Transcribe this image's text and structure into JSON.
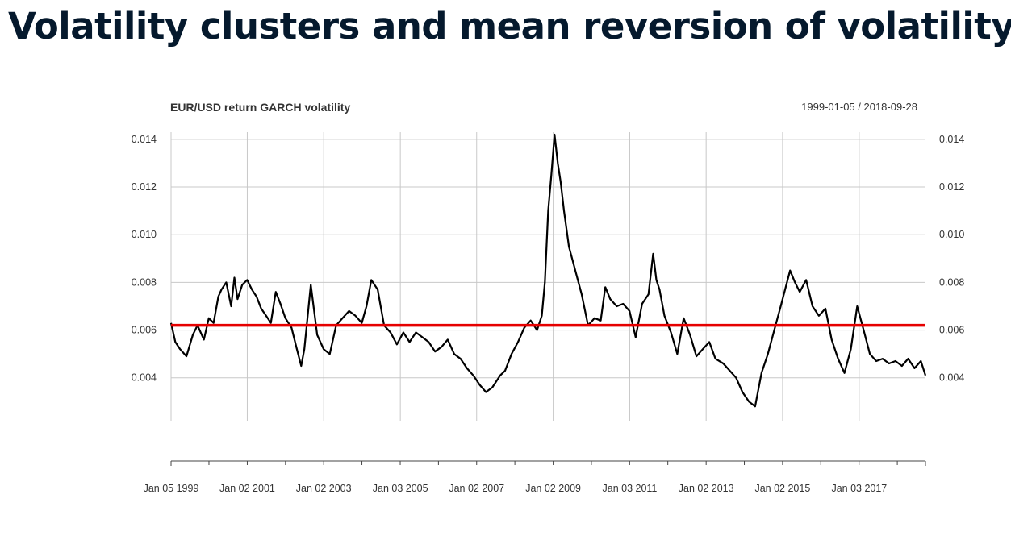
{
  "slide": {
    "title": "Volatility clusters and mean reversion of volatility"
  },
  "chart_data": {
    "type": "line",
    "title": "EUR/USD return GARCH volatility",
    "date_range": "1999-01-05 / 2018-09-28",
    "xlabel": "",
    "ylabel": "",
    "grid": true,
    "line_color": "#000000",
    "mean_line_color": "#e60000",
    "x_range": [
      "1999-01-05",
      "2018-09-28"
    ],
    "ylim": [
      0.0022,
      0.0143
    ],
    "y_ticks": [
      "0.004",
      "0.006",
      "0.008",
      "0.010",
      "0.012",
      "0.014"
    ],
    "x_ticks": [
      "Jan 05 1999",
      "Jan 02 2001",
      "Jan 02 2003",
      "Jan 03 2005",
      "Jan 02 2007",
      "Jan 02 2009",
      "Jan 03 2011",
      "Jan 02 2013",
      "Jan 02 2015",
      "Jan 03 2017"
    ],
    "mean_level": 0.0062,
    "series": [
      {
        "x": [
          "1999-01-05",
          "1999-02-15",
          "1999-04-01",
          "1999-06-01",
          "1999-08-01",
          "1999-09-15",
          "1999-11-15",
          "2000-01-01",
          "2000-02-15",
          "2000-04-01",
          "2000-05-01",
          "2000-06-15",
          "2000-08-01",
          "2000-09-01",
          "2000-10-01",
          "2000-11-15",
          "2001-01-01",
          "2001-02-15",
          "2001-04-01",
          "2001-05-15",
          "2001-07-01",
          "2001-08-15",
          "2001-10-01",
          "2001-11-15",
          "2002-01-01",
          "2002-03-01",
          "2002-04-15",
          "2002-06-01",
          "2002-07-01",
          "2002-09-01",
          "2002-11-01",
          "2003-01-01",
          "2003-03-01",
          "2003-05-01",
          "2003-07-01",
          "2003-09-01",
          "2003-11-01",
          "2004-01-01",
          "2004-02-15",
          "2004-04-01",
          "2004-06-01",
          "2004-08-01",
          "2004-10-01",
          "2004-12-01",
          "2005-02-01",
          "2005-04-01",
          "2005-06-01",
          "2005-08-01",
          "2005-10-01",
          "2005-12-01",
          "2006-02-01",
          "2006-04-01",
          "2006-06-01",
          "2006-08-01",
          "2006-10-01",
          "2006-12-01",
          "2007-02-01",
          "2007-04-01",
          "2007-06-01",
          "2007-08-15",
          "2007-10-01",
          "2007-12-01",
          "2008-02-01",
          "2008-04-01",
          "2008-06-01",
          "2008-08-01",
          "2008-09-15",
          "2008-10-15",
          "2008-11-15",
          "2008-12-15",
          "2009-01-15",
          "2009-02-15",
          "2009-03-15",
          "2009-04-15",
          "2009-06-01",
          "2009-08-01",
          "2009-10-01",
          "2009-12-01",
          "2010-02-01",
          "2010-04-01",
          "2010-05-15",
          "2010-07-01",
          "2010-09-01",
          "2010-11-01",
          "2011-01-01",
          "2011-03-01",
          "2011-05-01",
          "2011-07-01",
          "2011-08-15",
          "2011-09-15",
          "2011-10-15",
          "2011-12-01",
          "2012-02-01",
          "2012-04-01",
          "2012-06-01",
          "2012-08-01",
          "2012-10-01",
          "2012-12-01",
          "2013-02-01",
          "2013-04-01",
          "2013-06-15",
          "2013-08-15",
          "2013-10-15",
          "2013-12-15",
          "2014-02-15",
          "2014-04-15",
          "2014-06-15",
          "2014-08-15",
          "2014-10-15",
          "2014-12-15",
          "2015-02-01",
          "2015-03-15",
          "2015-05-01",
          "2015-06-15",
          "2015-08-15",
          "2015-10-15",
          "2015-12-15",
          "2016-02-15",
          "2016-04-15",
          "2016-06-15",
          "2016-08-15",
          "2016-10-15",
          "2016-12-15",
          "2017-02-15",
          "2017-04-15",
          "2017-06-15",
          "2017-08-15",
          "2017-10-15",
          "2017-12-15",
          "2018-02-15",
          "2018-04-15",
          "2018-06-15",
          "2018-08-15",
          "2018-09-28"
        ],
        "y": [
          0.0063,
          0.0055,
          0.0052,
          0.0049,
          0.0058,
          0.0062,
          0.0056,
          0.0065,
          0.0063,
          0.0074,
          0.0077,
          0.008,
          0.007,
          0.0082,
          0.0073,
          0.0079,
          0.0081,
          0.0077,
          0.0074,
          0.0069,
          0.0066,
          0.0063,
          0.0076,
          0.0071,
          0.0065,
          0.0061,
          0.0053,
          0.0045,
          0.0052,
          0.0079,
          0.0058,
          0.0052,
          0.005,
          0.0062,
          0.0065,
          0.0068,
          0.0066,
          0.0063,
          0.007,
          0.0081,
          0.0077,
          0.0062,
          0.0059,
          0.0054,
          0.0059,
          0.0055,
          0.0059,
          0.0057,
          0.0055,
          0.0051,
          0.0053,
          0.0056,
          0.005,
          0.0048,
          0.0044,
          0.0041,
          0.0037,
          0.0034,
          0.0036,
          0.0041,
          0.0043,
          0.005,
          0.0055,
          0.0061,
          0.0064,
          0.006,
          0.0066,
          0.008,
          0.011,
          0.0125,
          0.0142,
          0.013,
          0.0122,
          0.011,
          0.0095,
          0.0085,
          0.0075,
          0.0062,
          0.0065,
          0.0064,
          0.0078,
          0.0073,
          0.007,
          0.0071,
          0.0068,
          0.0057,
          0.0071,
          0.0075,
          0.0092,
          0.0081,
          0.0077,
          0.0066,
          0.0059,
          0.005,
          0.0065,
          0.0058,
          0.0049,
          0.0052,
          0.0055,
          0.0048,
          0.0046,
          0.0043,
          0.004,
          0.0034,
          0.003,
          0.0028,
          0.0042,
          0.005,
          0.006,
          0.007,
          0.0078,
          0.0085,
          0.008,
          0.0076,
          0.0081,
          0.007,
          0.0066,
          0.0069,
          0.0056,
          0.0048,
          0.0042,
          0.0052,
          0.007,
          0.006,
          0.005,
          0.0047,
          0.0048,
          0.0046,
          0.0047,
          0.0045,
          0.0048,
          0.0044,
          0.0047,
          0.0041
        ]
      }
    ]
  }
}
